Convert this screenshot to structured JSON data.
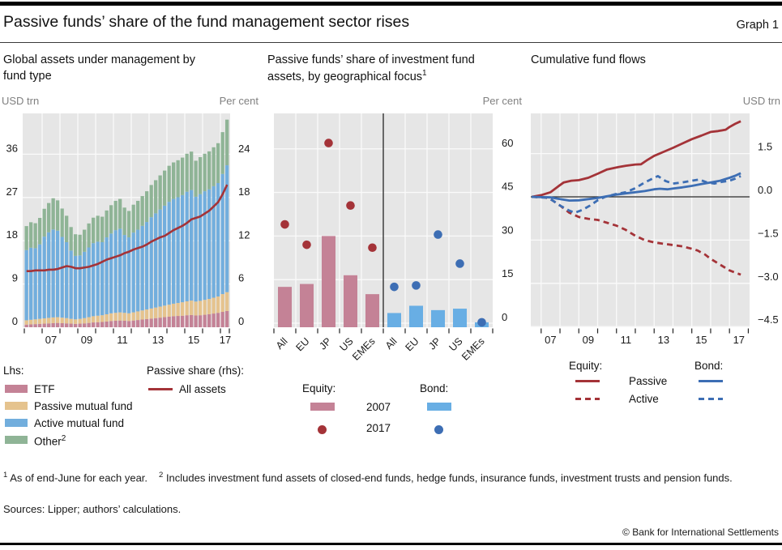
{
  "page": {
    "title": "Passive funds’ share of the fund management sector rises",
    "graph_label": "Graph 1"
  },
  "colors": {
    "etf": "#c48296",
    "passive_mf": "#e5c38e",
    "active_mf": "#72aedd",
    "other": "#8fb496",
    "bond_bar": "#68aee4",
    "equity_line": "#a43338",
    "bond_line": "#3d6eb4",
    "plot_bg": "#e6e6e6",
    "grid": "#fafafa",
    "zero_line": "#262626",
    "axis_unit": "#808080",
    "tick_text": "#1a1a1a"
  },
  "chart_data": [
    {
      "type": "bar",
      "subtype": "stacked-quarterly-with-line",
      "title": "Global assets under management by fund type",
      "unit_left": "USD trn",
      "unit_right": "Per cent",
      "x_start_year": 2006,
      "x_freq": "quarterly",
      "left_ticks": [
        0,
        9,
        18,
        27,
        36
      ],
      "right_ticks": [
        0,
        6,
        12,
        18,
        24
      ],
      "x_tick_labels": [
        "07",
        "09",
        "11",
        "13",
        "15",
        "17"
      ],
      "series": [
        {
          "name": "ETF",
          "color_key": "etf",
          "values": [
            0.55,
            0.6,
            0.65,
            0.7,
            0.75,
            0.8,
            0.85,
            0.9,
            0.85,
            0.8,
            0.75,
            0.7,
            0.75,
            0.8,
            0.9,
            1.0,
            1.05,
            1.1,
            1.2,
            1.3,
            1.35,
            1.4,
            1.35,
            1.3,
            1.4,
            1.5,
            1.6,
            1.7,
            1.8,
            1.9,
            2.0,
            2.1,
            2.2,
            2.3,
            2.35,
            2.4,
            2.5,
            2.55,
            2.45,
            2.5,
            2.6,
            2.7,
            2.85,
            3.0,
            3.2,
            3.4
          ]
        },
        {
          "name": "Passive mutual fund",
          "color_key": "passive_mf",
          "values": [
            0.9,
            0.95,
            1.0,
            1.05,
            1.1,
            1.15,
            1.2,
            1.2,
            1.15,
            1.1,
            1.0,
            0.95,
            1.0,
            1.1,
            1.2,
            1.3,
            1.35,
            1.4,
            1.5,
            1.6,
            1.65,
            1.7,
            1.65,
            1.6,
            1.7,
            1.8,
            1.9,
            2.0,
            2.1,
            2.2,
            2.3,
            2.4,
            2.5,
            2.6,
            2.7,
            2.8,
            2.9,
            3.0,
            2.9,
            3.0,
            3.1,
            3.2,
            3.3,
            3.4,
            3.7,
            3.9
          ]
        },
        {
          "name": "Active mutual fund",
          "color_key": "active_mf",
          "values": [
            14.6,
            15.0,
            14.8,
            15.5,
            17.0,
            17.8,
            18.3,
            18.0,
            16.8,
            15.8,
            14.2,
            13.2,
            13.2,
            13.8,
            14.5,
            15.2,
            15.4,
            15.2,
            16.0,
            16.6,
            17.2,
            17.4,
            16.2,
            15.8,
            16.6,
            17.0,
            17.6,
            18.2,
            19.0,
            19.6,
            20.2,
            20.8,
            21.4,
            21.8,
            22.0,
            22.3,
            22.8,
            23.0,
            21.8,
            22.2,
            22.6,
            22.8,
            23.2,
            23.6,
            25.0,
            26.4
          ]
        },
        {
          "name": "Other",
          "color_key": "other",
          "values": [
            5.0,
            5.3,
            5.2,
            5.5,
            5.8,
            6.1,
            6.5,
            6.3,
            5.9,
            5.5,
            4.9,
            4.5,
            4.3,
            4.6,
            5.0,
            5.3,
            5.4,
            5.3,
            5.6,
            5.9,
            6.1,
            6.2,
            5.7,
            5.5,
            5.8,
            6.0,
            6.2,
            6.4,
            6.7,
            6.9,
            7.1,
            7.3,
            7.5,
            7.6,
            7.7,
            7.8,
            7.9,
            8.0,
            7.5,
            7.7,
            7.8,
            7.9,
            8.1,
            8.3,
            8.7,
            9.5
          ]
        }
      ],
      "line": {
        "name": "All assets (passive share, rhs)",
        "axis": "right",
        "color_key": "equity_line",
        "values": [
          7.8,
          7.8,
          7.9,
          7.9,
          7.9,
          8.0,
          8.0,
          8.1,
          8.3,
          8.5,
          8.4,
          8.2,
          8.2,
          8.3,
          8.4,
          8.6,
          8.8,
          9.1,
          9.4,
          9.6,
          9.8,
          10.0,
          10.3,
          10.5,
          10.8,
          11.0,
          11.2,
          11.5,
          11.9,
          12.2,
          12.5,
          12.7,
          13.1,
          13.5,
          13.8,
          14.1,
          14.5,
          15.0,
          15.2,
          15.4,
          15.8,
          16.2,
          16.8,
          17.4,
          18.5,
          19.8
        ]
      }
    },
    {
      "type": "bar",
      "subtype": "grouped-bars-with-dots",
      "title": "Passive funds’ share of investment fund assets, by geographical focus",
      "title_sup": "1",
      "unit": "Per cent",
      "right_ticks": [
        0,
        15,
        30,
        45,
        60
      ],
      "groups": [
        {
          "name": "Equity",
          "categories": [
            "All",
            "EU",
            "JP",
            "US",
            "EMEs"
          ],
          "bars_2007": [
            12.5,
            13.5,
            30,
            16.5,
            10
          ],
          "dots_2017": [
            34,
            27,
            62,
            40.5,
            26
          ],
          "bar_color_key": "etf",
          "dot_color_key": "equity_line"
        },
        {
          "name": "Bond",
          "categories": [
            "All",
            "EU",
            "JP",
            "US",
            "EMEs"
          ],
          "bars_2007": [
            3.5,
            6,
            4.5,
            5,
            0.3
          ],
          "dots_2017": [
            12.5,
            13,
            30.5,
            20.5,
            0.3
          ],
          "bar_color_key": "bond_bar",
          "dot_color_key": "bond_line"
        }
      ]
    },
    {
      "type": "line",
      "title": "Cumulative fund flows",
      "unit": "USD trn",
      "right_tick_values": [
        1.5,
        0,
        -1.5,
        -3,
        -4.5
      ],
      "right_tick_labels": [
        "1.5",
        "0.0",
        "−1.5",
        "−3.0",
        "−4.5"
      ],
      "x_tick_labels": [
        "07",
        "09",
        "11",
        "13",
        "15",
        "17"
      ],
      "series": [
        {
          "name": "Equity Passive",
          "color_key": "equity_line",
          "dash": false,
          "points": [
            [
              2006.5,
              0
            ],
            [
              2007,
              0.06
            ],
            [
              2007.5,
              0.16
            ],
            [
              2007.9,
              0.36
            ],
            [
              2008.2,
              0.5
            ],
            [
              2008.6,
              0.56
            ],
            [
              2009,
              0.58
            ],
            [
              2009.5,
              0.66
            ],
            [
              2010,
              0.8
            ],
            [
              2010.5,
              0.95
            ],
            [
              2011,
              1.02
            ],
            [
              2011.5,
              1.08
            ],
            [
              2012,
              1.12
            ],
            [
              2012.3,
              1.13
            ],
            [
              2012.6,
              1.26
            ],
            [
              2013,
              1.42
            ],
            [
              2013.5,
              1.56
            ],
            [
              2014,
              1.7
            ],
            [
              2014.5,
              1.85
            ],
            [
              2015,
              2.0
            ],
            [
              2015.5,
              2.12
            ],
            [
              2016,
              2.25
            ],
            [
              2016.4,
              2.28
            ],
            [
              2016.8,
              2.33
            ],
            [
              2017,
              2.42
            ],
            [
              2017.3,
              2.53
            ],
            [
              2017.6,
              2.62
            ]
          ]
        },
        {
          "name": "Equity Active",
          "color_key": "equity_line",
          "dash": true,
          "points": [
            [
              2006.5,
              0
            ],
            [
              2007.2,
              -0.02
            ],
            [
              2007.5,
              -0.08
            ],
            [
              2008,
              -0.3
            ],
            [
              2008.5,
              -0.55
            ],
            [
              2009,
              -0.7
            ],
            [
              2009.5,
              -0.76
            ],
            [
              2010,
              -0.8
            ],
            [
              2010.5,
              -0.9
            ],
            [
              2011,
              -1.0
            ],
            [
              2011.5,
              -1.15
            ],
            [
              2012,
              -1.35
            ],
            [
              2012.5,
              -1.5
            ],
            [
              2013,
              -1.58
            ],
            [
              2013.5,
              -1.63
            ],
            [
              2014,
              -1.67
            ],
            [
              2014.5,
              -1.72
            ],
            [
              2015,
              -1.8
            ],
            [
              2015.3,
              -1.86
            ],
            [
              2015.7,
              -2.0
            ],
            [
              2016,
              -2.15
            ],
            [
              2016.5,
              -2.35
            ],
            [
              2017,
              -2.55
            ],
            [
              2017.6,
              -2.7
            ]
          ]
        },
        {
          "name": "Bond Passive",
          "color_key": "bond_line",
          "dash": false,
          "points": [
            [
              2006.5,
              0
            ],
            [
              2007.5,
              -0.02
            ],
            [
              2008,
              -0.08
            ],
            [
              2008.5,
              -0.13
            ],
            [
              2009,
              -0.12
            ],
            [
              2009.5,
              -0.08
            ],
            [
              2010,
              -0.04
            ],
            [
              2010.5,
              0.02
            ],
            [
              2011,
              0.08
            ],
            [
              2011.5,
              0.12
            ],
            [
              2012,
              0.16
            ],
            [
              2012.5,
              0.2
            ],
            [
              2013,
              0.26
            ],
            [
              2013.3,
              0.28
            ],
            [
              2013.7,
              0.26
            ],
            [
              2014,
              0.29
            ],
            [
              2014.5,
              0.33
            ],
            [
              2015,
              0.38
            ],
            [
              2015.5,
              0.44
            ],
            [
              2016,
              0.5
            ],
            [
              2016.5,
              0.56
            ],
            [
              2017,
              0.66
            ],
            [
              2017.3,
              0.73
            ],
            [
              2017.6,
              0.82
            ]
          ]
        },
        {
          "name": "Bond Active",
          "color_key": "bond_line",
          "dash": true,
          "points": [
            [
              2006.5,
              0
            ],
            [
              2007.3,
              -0.03
            ],
            [
              2007.6,
              -0.12
            ],
            [
              2008,
              -0.3
            ],
            [
              2008.5,
              -0.48
            ],
            [
              2008.8,
              -0.55
            ],
            [
              2009.2,
              -0.45
            ],
            [
              2009.6,
              -0.3
            ],
            [
              2010,
              -0.12
            ],
            [
              2010.4,
              0.0
            ],
            [
              2011,
              0.1
            ],
            [
              2011.5,
              0.16
            ],
            [
              2012,
              0.3
            ],
            [
              2012.5,
              0.5
            ],
            [
              2012.9,
              0.63
            ],
            [
              2013.2,
              0.72
            ],
            [
              2013.6,
              0.55
            ],
            [
              2014,
              0.46
            ],
            [
              2014.5,
              0.5
            ],
            [
              2015,
              0.56
            ],
            [
              2015.4,
              0.6
            ],
            [
              2015.8,
              0.5
            ],
            [
              2016.2,
              0.46
            ],
            [
              2016.6,
              0.52
            ],
            [
              2017,
              0.56
            ],
            [
              2017.3,
              0.63
            ],
            [
              2017.6,
              0.72
            ]
          ]
        }
      ]
    }
  ],
  "legends": {
    "lhs": {
      "heading": "Lhs:",
      "items": [
        {
          "label": "ETF",
          "color_key": "colors.etf"
        },
        {
          "label": "Passive mutual fund",
          "color_key": "colors.passive_mf"
        },
        {
          "label": "Active mutual fund",
          "color_key": "colors.active_mf"
        },
        {
          "label": "Other",
          "sup": "2",
          "color_key": "colors.other"
        }
      ]
    },
    "rhs_line": {
      "heading": "Passive share (rhs):",
      "item": "All assets"
    },
    "middle": {
      "equity_heading": "Equity:",
      "bond_heading": "Bond:",
      "year_bar": "2007",
      "year_dot": "2017"
    },
    "right": {
      "equity_heading": "Equity:",
      "bond_heading": "Bond:",
      "solid_label": "Passive",
      "dash_label": "Active"
    }
  },
  "footnotes": {
    "fn1_sup": "1",
    "fn1_text": " As of end-June for each year.",
    "fn2_sup": "2",
    "fn2_text": " Includes investment fund assets of closed-end funds, hedge funds, insurance funds, investment trusts and pension funds.",
    "sources": "Sources: Lipper; authors’ calculations.",
    "copyright": "© Bank for International Settlements"
  }
}
